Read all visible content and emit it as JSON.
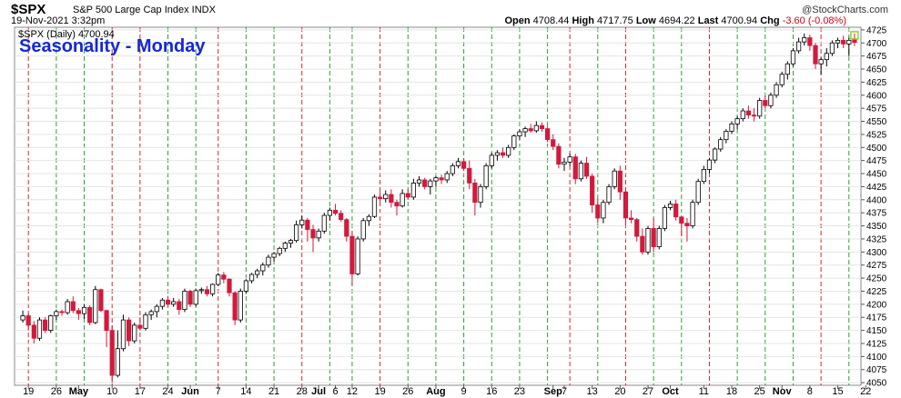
{
  "header": {
    "symbol": "$SPX",
    "description": "S&P 500 Large Cap Index INDX",
    "date": "19-Nov-2021 3:32pm",
    "open_label": "Open",
    "open": "4708.44",
    "high_label": "High",
    "high": "4717.75",
    "low_label": "Low",
    "low": "4694.22",
    "last_label": "Last",
    "last": "4700.94",
    "chg_label": "Chg",
    "chg": "-3.60 (-0.08%)",
    "chg_color": "#d0021b",
    "copyright": "@StockCharts.com",
    "legend": "$SPX (Daily) 4700.94"
  },
  "title": "Seasonality - Monday",
  "colors": {
    "up_fill": "#ffffff",
    "up_stroke": "#000000",
    "down": "#d11a3c",
    "title": "#1428d8",
    "vline_green": "#2ca02c",
    "vline_red": "#d62728",
    "current_marker": "#9acd32"
  },
  "chart_data": {
    "type": "candlestick",
    "title": "Seasonality - Monday",
    "y_axis": {
      "side": "right",
      "ylim": [
        4045,
        4730
      ],
      "ticks": [
        4050,
        4075,
        4100,
        4125,
        4150,
        4175,
        4200,
        4225,
        4250,
        4275,
        4300,
        4325,
        4350,
        4375,
        4400,
        4425,
        4450,
        4475,
        4500,
        4525,
        4550,
        4575,
        4600,
        4625,
        4650,
        4675,
        4700,
        4725
      ]
    },
    "x_axis": {
      "labels": [
        {
          "i": 1,
          "text": "19"
        },
        {
          "i": 6,
          "text": "26"
        },
        {
          "i": 10,
          "text": "May"
        },
        {
          "i": 16,
          "text": "10"
        },
        {
          "i": 21,
          "text": "17"
        },
        {
          "i": 26,
          "text": "24"
        },
        {
          "i": 30,
          "text": "Jun"
        },
        {
          "i": 35,
          "text": "7"
        },
        {
          "i": 40,
          "text": "14"
        },
        {
          "i": 45,
          "text": "21"
        },
        {
          "i": 50,
          "text": "28"
        },
        {
          "i": 53,
          "text": "Jul"
        },
        {
          "i": 56,
          "text": "6"
        },
        {
          "i": 59,
          "text": "12"
        },
        {
          "i": 64,
          "text": "19"
        },
        {
          "i": 69,
          "text": "26"
        },
        {
          "i": 74,
          "text": "Aug"
        },
        {
          "i": 79,
          "text": "9"
        },
        {
          "i": 84,
          "text": "16"
        },
        {
          "i": 89,
          "text": "23"
        },
        {
          "i": 95,
          "text": "Sep"
        },
        {
          "i": 97,
          "text": "7"
        },
        {
          "i": 102,
          "text": "13"
        },
        {
          "i": 107,
          "text": "20"
        },
        {
          "i": 112,
          "text": "27"
        },
        {
          "i": 116,
          "text": "Oct"
        },
        {
          "i": 122,
          "text": "11"
        },
        {
          "i": 127,
          "text": "18"
        },
        {
          "i": 132,
          "text": "25"
        },
        {
          "i": 136,
          "text": "Nov"
        },
        {
          "i": 141,
          "text": "8"
        },
        {
          "i": 146,
          "text": "15"
        },
        {
          "i": 151,
          "text": "22"
        }
      ]
    },
    "monday_lines": [
      {
        "i": 1,
        "color": "red"
      },
      {
        "i": 6,
        "color": "green"
      },
      {
        "i": 11,
        "color": "green"
      },
      {
        "i": 16,
        "color": "red"
      },
      {
        "i": 21,
        "color": "red"
      },
      {
        "i": 26,
        "color": "green"
      },
      {
        "i": 31,
        "color": "green"
      },
      {
        "i": 35,
        "color": "red"
      },
      {
        "i": 40,
        "color": "green"
      },
      {
        "i": 45,
        "color": "green"
      },
      {
        "i": 50,
        "color": "red"
      },
      {
        "i": 55,
        "color": "green"
      },
      {
        "i": 59,
        "color": "green"
      },
      {
        "i": 64,
        "color": "red"
      },
      {
        "i": 69,
        "color": "green"
      },
      {
        "i": 74,
        "color": "green"
      },
      {
        "i": 79,
        "color": "green"
      },
      {
        "i": 84,
        "color": "green"
      },
      {
        "i": 89,
        "color": "green"
      },
      {
        "i": 94,
        "color": "green"
      },
      {
        "i": 98,
        "color": "red"
      },
      {
        "i": 103,
        "color": "green"
      },
      {
        "i": 108,
        "color": "red"
      },
      {
        "i": 113,
        "color": "green"
      },
      {
        "i": 118,
        "color": "green"
      },
      {
        "i": 123,
        "color": "red"
      },
      {
        "i": 128,
        "color": "green"
      },
      {
        "i": 133,
        "color": "green"
      },
      {
        "i": 138,
        "color": "green"
      },
      {
        "i": 143,
        "color": "red"
      },
      {
        "i": 148,
        "color": "green"
      }
    ],
    "series": [
      {
        "name": "$SPX (Daily)",
        "ohlc": [
          [
            4170,
            4188,
            4165,
            4178
          ],
          [
            4178,
            4183,
            4150,
            4160
          ],
          [
            4160,
            4168,
            4125,
            4135
          ],
          [
            4135,
            4175,
            4130,
            4170
          ],
          [
            4170,
            4175,
            4145,
            4150
          ],
          [
            4150,
            4180,
            4145,
            4178
          ],
          [
            4178,
            4190,
            4170,
            4186
          ],
          [
            4186,
            4190,
            4178,
            4184
          ],
          [
            4184,
            4210,
            4180,
            4205
          ],
          [
            4205,
            4215,
            4183,
            4188
          ],
          [
            4188,
            4193,
            4170,
            4182
          ],
          [
            4182,
            4200,
            4172,
            4194
          ],
          [
            4194,
            4198,
            4160,
            4165
          ],
          [
            4165,
            4235,
            4162,
            4228
          ],
          [
            4228,
            4230,
            4185,
            4188
          ],
          [
            4188,
            4190,
            4118,
            4150
          ],
          [
            4150,
            4160,
            4050,
            4064
          ],
          [
            4064,
            4150,
            4060,
            4115
          ],
          [
            4115,
            4180,
            4110,
            4170
          ],
          [
            4170,
            4175,
            4120,
            4130
          ],
          [
            4130,
            4165,
            4125,
            4160
          ],
          [
            4160,
            4175,
            4150,
            4154
          ],
          [
            4154,
            4185,
            4150,
            4180
          ],
          [
            4180,
            4190,
            4170,
            4186
          ],
          [
            4186,
            4200,
            4175,
            4196
          ],
          [
            4196,
            4212,
            4190,
            4208
          ],
          [
            4208,
            4216,
            4195,
            4200
          ],
          [
            4200,
            4212,
            4195,
            4205
          ],
          [
            4205,
            4210,
            4180,
            4190
          ],
          [
            4190,
            4230,
            4185,
            4225
          ],
          [
            4225,
            4228,
            4195,
            4200
          ],
          [
            4200,
            4230,
            4196,
            4226
          ],
          [
            4226,
            4232,
            4220,
            4228
          ],
          [
            4228,
            4235,
            4215,
            4220
          ],
          [
            4220,
            4240,
            4215,
            4238
          ],
          [
            4238,
            4260,
            4235,
            4256
          ],
          [
            4256,
            4262,
            4240,
            4248
          ],
          [
            4248,
            4250,
            4215,
            4222
          ],
          [
            4222,
            4225,
            4160,
            4170
          ],
          [
            4170,
            4230,
            4165,
            4225
          ],
          [
            4225,
            4248,
            4220,
            4245
          ],
          [
            4245,
            4260,
            4240,
            4257
          ],
          [
            4257,
            4268,
            4250,
            4264
          ],
          [
            4264,
            4280,
            4255,
            4275
          ],
          [
            4275,
            4295,
            4270,
            4290
          ],
          [
            4290,
            4300,
            4282,
            4297
          ],
          [
            4297,
            4310,
            4292,
            4307
          ],
          [
            4307,
            4320,
            4300,
            4317
          ],
          [
            4317,
            4325,
            4308,
            4322
          ],
          [
            4322,
            4360,
            4318,
            4352
          ],
          [
            4352,
            4370,
            4345,
            4361
          ],
          [
            4361,
            4365,
            4320,
            4343
          ],
          [
            4343,
            4352,
            4300,
            4327
          ],
          [
            4327,
            4345,
            4320,
            4340
          ],
          [
            4340,
            4375,
            4335,
            4370
          ],
          [
            4370,
            4385,
            4360,
            4380
          ],
          [
            4380,
            4392,
            4370,
            4374
          ],
          [
            4374,
            4380,
            4358,
            4362
          ],
          [
            4362,
            4365,
            4320,
            4330
          ],
          [
            4330,
            4340,
            4235,
            4258
          ],
          [
            4258,
            4330,
            4255,
            4325
          ],
          [
            4325,
            4365,
            4320,
            4360
          ],
          [
            4360,
            4372,
            4350,
            4368
          ],
          [
            4368,
            4410,
            4365,
            4405
          ],
          [
            4405,
            4415,
            4395,
            4402
          ],
          [
            4402,
            4418,
            4395,
            4410
          ],
          [
            4410,
            4420,
            4385,
            4395
          ],
          [
            4395,
            4400,
            4370,
            4388
          ],
          [
            4388,
            4420,
            4385,
            4412
          ],
          [
            4412,
            4420,
            4400,
            4405
          ],
          [
            4405,
            4440,
            4400,
            4432
          ],
          [
            4432,
            4445,
            4425,
            4438
          ],
          [
            4438,
            4442,
            4420,
            4425
          ],
          [
            4425,
            4440,
            4410,
            4436
          ],
          [
            4436,
            4445,
            4425,
            4442
          ],
          [
            4442,
            4448,
            4430,
            4438
          ],
          [
            4438,
            4455,
            4432,
            4450
          ],
          [
            4450,
            4470,
            4445,
            4465
          ],
          [
            4465,
            4480,
            4460,
            4473
          ],
          [
            4473,
            4480,
            4455,
            4460
          ],
          [
            4460,
            4475,
            4420,
            4432
          ],
          [
            4432,
            4440,
            4370,
            4395
          ],
          [
            4395,
            4430,
            4385,
            4425
          ],
          [
            4425,
            4470,
            4420,
            4465
          ],
          [
            4465,
            4490,
            4460,
            4485
          ],
          [
            4485,
            4495,
            4475,
            4490
          ],
          [
            4490,
            4500,
            4480,
            4485
          ],
          [
            4485,
            4505,
            4480,
            4500
          ],
          [
            4500,
            4525,
            4495,
            4522
          ],
          [
            4522,
            4535,
            4515,
            4530
          ],
          [
            4530,
            4540,
            4520,
            4536
          ],
          [
            4536,
            4545,
            4528,
            4532
          ],
          [
            4532,
            4550,
            4528,
            4542
          ],
          [
            4542,
            4548,
            4530,
            4536
          ],
          [
            4536,
            4540,
            4510,
            4515
          ],
          [
            4515,
            4525,
            4495,
            4502
          ],
          [
            4502,
            4508,
            4460,
            4468
          ],
          [
            4468,
            4480,
            4455,
            4472
          ],
          [
            4472,
            4488,
            4465,
            4482
          ],
          [
            4482,
            4488,
            4430,
            4440
          ],
          [
            4440,
            4475,
            4435,
            4470
          ],
          [
            4470,
            4482,
            4440,
            4445
          ],
          [
            4445,
            4450,
            4375,
            4390
          ],
          [
            4390,
            4402,
            4355,
            4365
          ],
          [
            4365,
            4400,
            4355,
            4395
          ],
          [
            4395,
            4430,
            4390,
            4425
          ],
          [
            4425,
            4460,
            4420,
            4455
          ],
          [
            4455,
            4465,
            4400,
            4415
          ],
          [
            4415,
            4420,
            4350,
            4365
          ],
          [
            4365,
            4380,
            4355,
            4362
          ],
          [
            4362,
            4365,
            4320,
            4330
          ],
          [
            4330,
            4345,
            4295,
            4300
          ],
          [
            4300,
            4350,
            4295,
            4345
          ],
          [
            4345,
            4365,
            4300,
            4310
          ],
          [
            4310,
            4350,
            4305,
            4345
          ],
          [
            4345,
            4390,
            4340,
            4385
          ],
          [
            4385,
            4398,
            4380,
            4392
          ],
          [
            4392,
            4400,
            4360,
            4367
          ],
          [
            4367,
            4370,
            4330,
            4355
          ],
          [
            4355,
            4365,
            4320,
            4350
          ],
          [
            4350,
            4400,
            4345,
            4395
          ],
          [
            4395,
            4440,
            4390,
            4435
          ],
          [
            4435,
            4465,
            4430,
            4458
          ],
          [
            4458,
            4480,
            4450,
            4476
          ],
          [
            4476,
            4500,
            4470,
            4497
          ],
          [
            4497,
            4520,
            4492,
            4515
          ],
          [
            4515,
            4535,
            4508,
            4531
          ],
          [
            4531,
            4550,
            4526,
            4545
          ],
          [
            4545,
            4560,
            4535,
            4555
          ],
          [
            4555,
            4575,
            4550,
            4570
          ],
          [
            4570,
            4580,
            4555,
            4562
          ],
          [
            4562,
            4575,
            4550,
            4560
          ],
          [
            4560,
            4595,
            4555,
            4590
          ],
          [
            4590,
            4600,
            4575,
            4580
          ],
          [
            4580,
            4605,
            4575,
            4600
          ],
          [
            4600,
            4625,
            4595,
            4620
          ],
          [
            4620,
            4645,
            4615,
            4640
          ],
          [
            4640,
            4665,
            4630,
            4660
          ],
          [
            4660,
            4690,
            4655,
            4685
          ],
          [
            4685,
            4710,
            4680,
            4702
          ],
          [
            4702,
            4718,
            4695,
            4710
          ],
          [
            4710,
            4716,
            4685,
            4695
          ],
          [
            4695,
            4700,
            4650,
            4660
          ],
          [
            4660,
            4672,
            4640,
            4668
          ],
          [
            4668,
            4690,
            4655,
            4680
          ],
          [
            4680,
            4705,
            4675,
            4700
          ],
          [
            4700,
            4710,
            4690,
            4705
          ],
          [
            4705,
            4714,
            4690,
            4698
          ],
          [
            4698,
            4710,
            4675,
            4705
          ],
          [
            4708,
            4718,
            4694,
            4701
          ]
        ]
      }
    ]
  }
}
